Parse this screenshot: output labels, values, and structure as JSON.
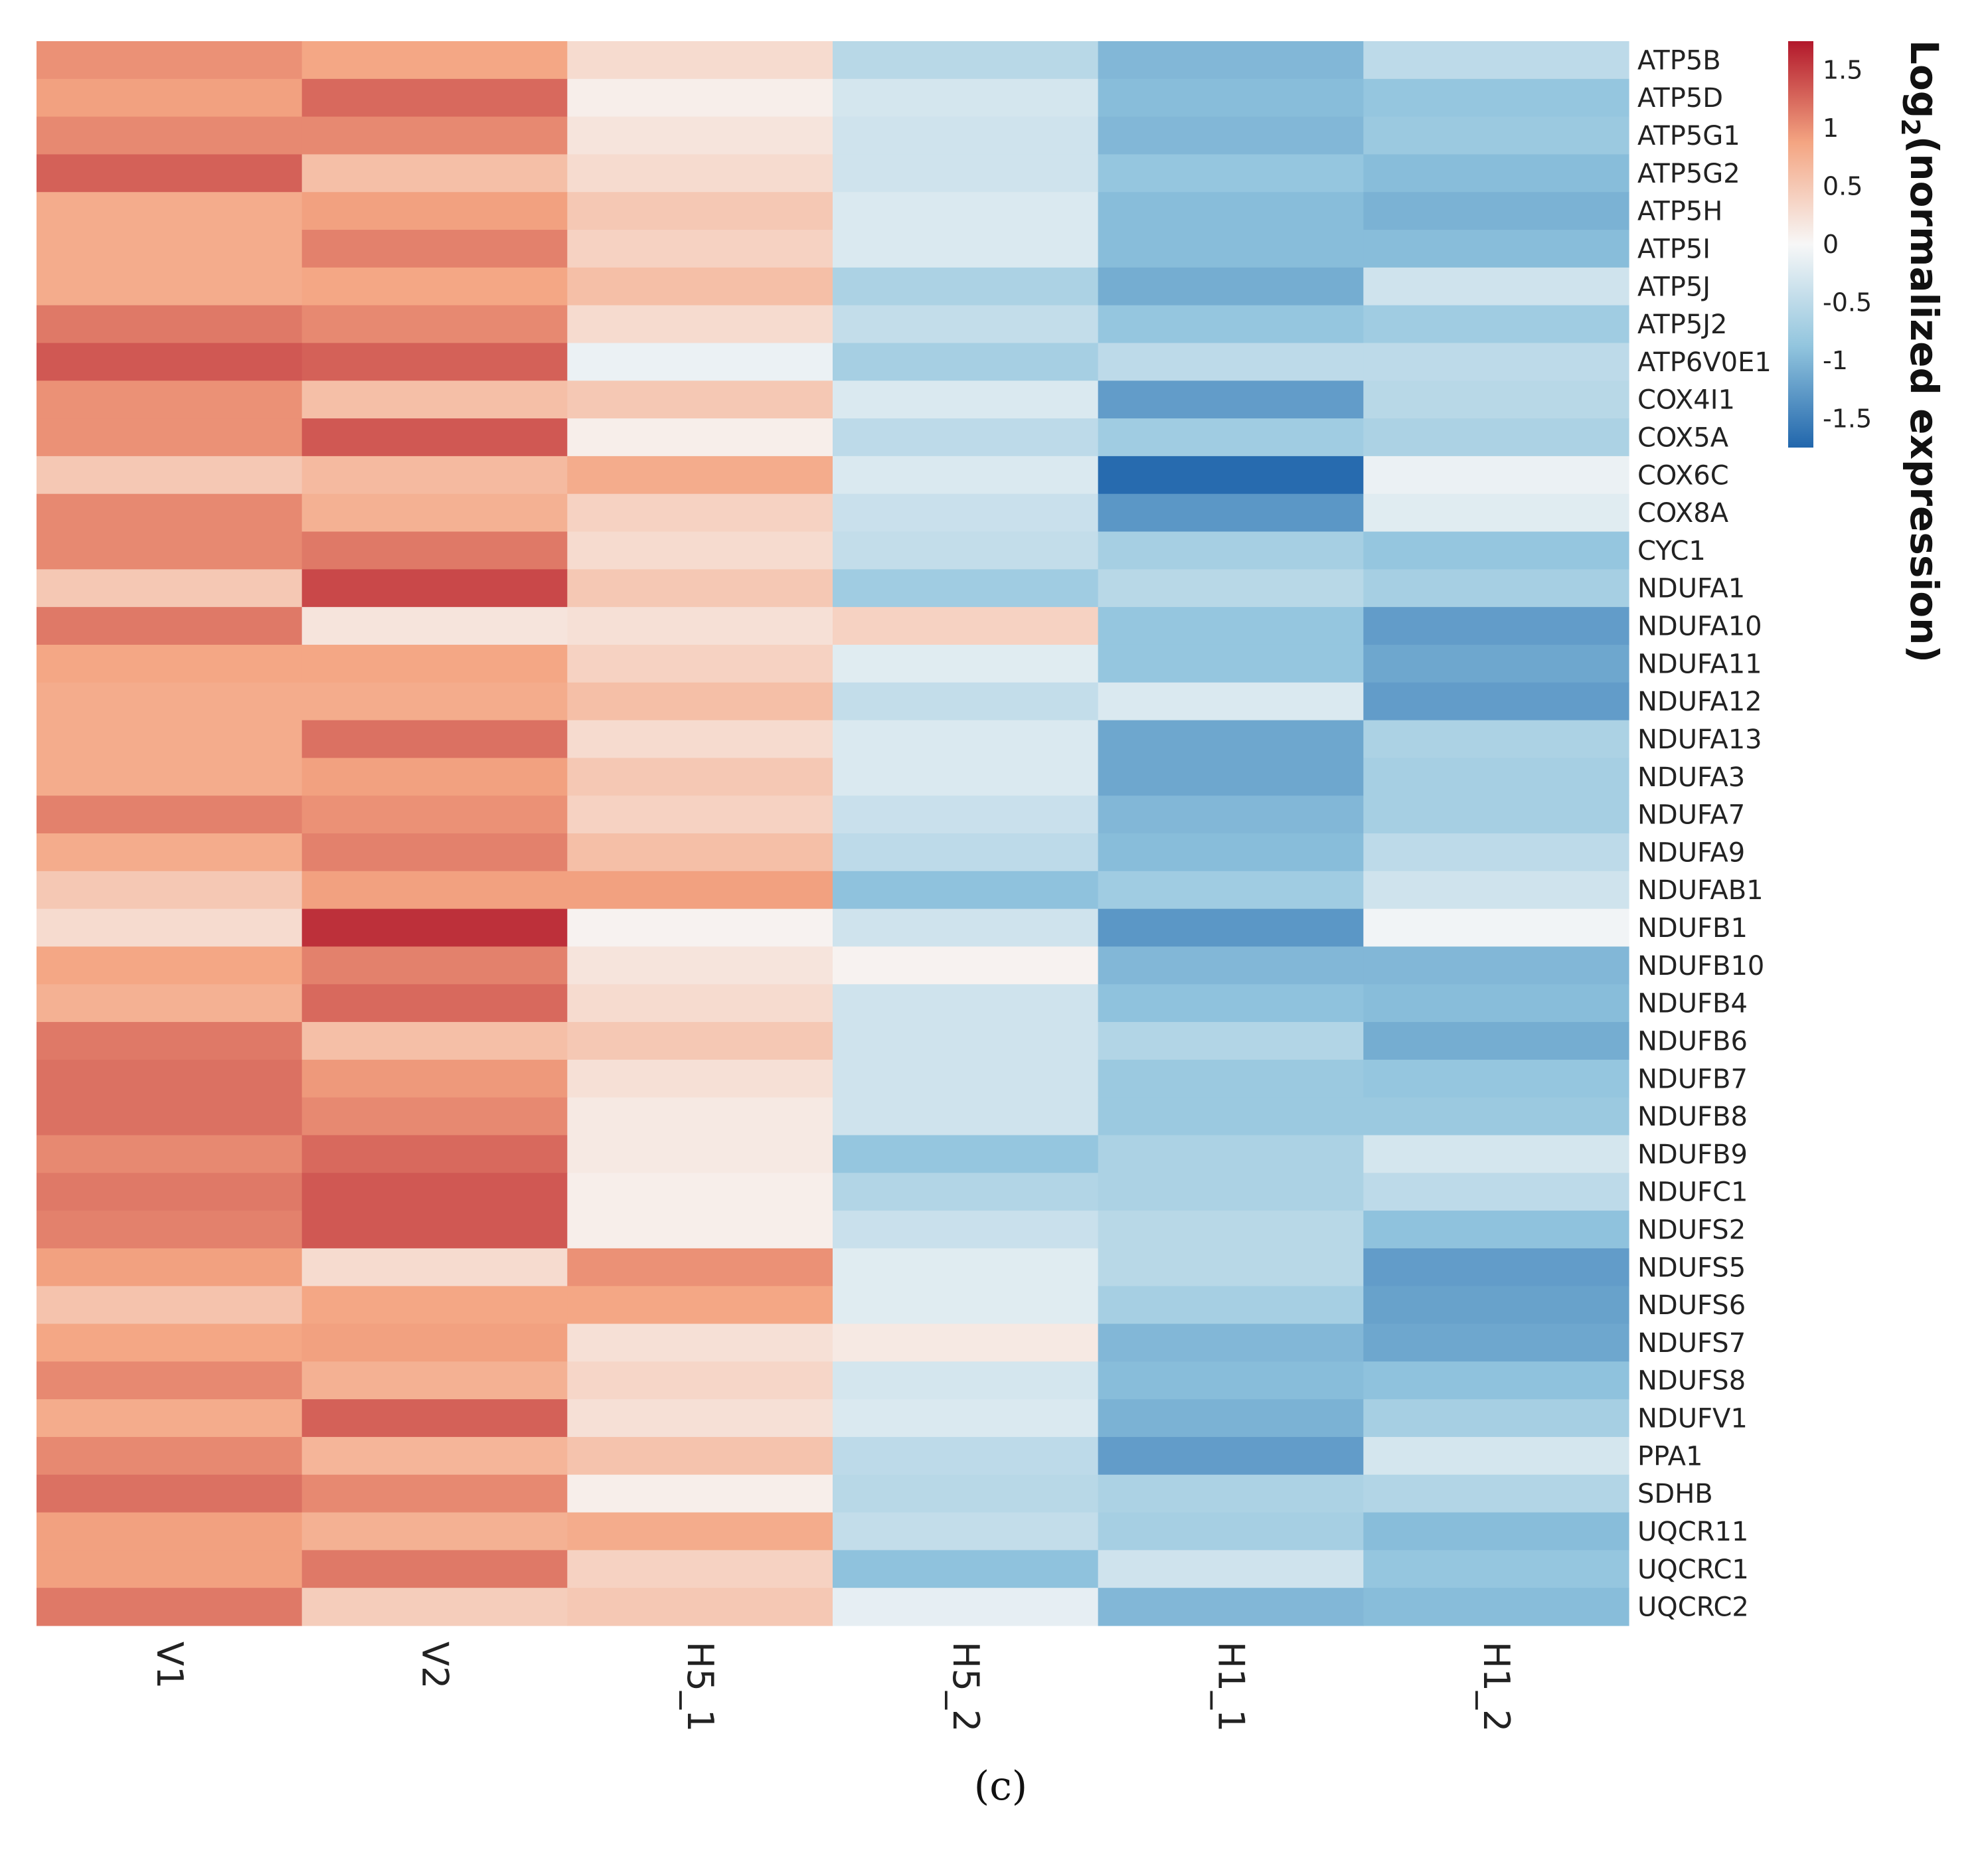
{
  "panel_label": "(c)",
  "chart_data": {
    "type": "heatmap",
    "columns": [
      "V1",
      "V2",
      "H5_1",
      "H5_2",
      "H1_1",
      "H1_2"
    ],
    "rows": [
      "ATP5B",
      "ATP5D",
      "ATP5G1",
      "ATP5G2",
      "ATP5H",
      "ATP5I",
      "ATP5J",
      "ATP5J2",
      "ATP6V0E1",
      "COX4I1",
      "COX5A",
      "COX6C",
      "COX8A",
      "CYC1",
      "NDUFA1",
      "NDUFA10",
      "NDUFA11",
      "NDUFA12",
      "NDUFA13",
      "NDUFA3",
      "NDUFA7",
      "NDUFA9",
      "NDUFAB1",
      "NDUFB1",
      "NDUFB10",
      "NDUFB4",
      "NDUFB6",
      "NDUFB7",
      "NDUFB8",
      "NDUFB9",
      "NDUFC1",
      "NDUFS2",
      "NDUFS5",
      "NDUFS6",
      "NDUFS7",
      "NDUFS8",
      "NDUFV1",
      "PPA1",
      "SDHB",
      "UQCR11",
      "UQCRC1",
      "UQCRC2"
    ],
    "values": [
      [
        1.0,
        0.85,
        0.3,
        -0.55,
        -1.0,
        -0.5
      ],
      [
        0.9,
        1.25,
        0.1,
        -0.3,
        -0.95,
        -0.85
      ],
      [
        1.05,
        1.05,
        0.2,
        -0.35,
        -1.0,
        -0.8
      ],
      [
        1.3,
        0.6,
        0.3,
        -0.35,
        -0.85,
        -0.95
      ],
      [
        0.8,
        0.9,
        0.5,
        -0.25,
        -0.95,
        -1.05
      ],
      [
        0.8,
        1.1,
        0.4,
        -0.25,
        -0.95,
        -0.95
      ],
      [
        0.8,
        0.85,
        0.6,
        -0.65,
        -1.1,
        -0.35
      ],
      [
        1.15,
        1.05,
        0.3,
        -0.45,
        -0.85,
        -0.75
      ],
      [
        1.35,
        1.3,
        -0.1,
        -0.7,
        -0.5,
        -0.5
      ],
      [
        1.0,
        0.6,
        0.5,
        -0.25,
        -1.25,
        -0.55
      ],
      [
        1.0,
        1.35,
        0.1,
        -0.5,
        -0.75,
        -0.65
      ],
      [
        0.5,
        0.65,
        0.8,
        -0.25,
        -1.7,
        -0.1
      ],
      [
        1.05,
        0.75,
        0.4,
        -0.4,
        -1.3,
        -0.2
      ],
      [
        1.05,
        1.15,
        0.3,
        -0.45,
        -0.7,
        -0.85
      ],
      [
        0.5,
        1.45,
        0.5,
        -0.75,
        -0.55,
        -0.7
      ],
      [
        1.15,
        0.2,
        0.25,
        0.4,
        -0.85,
        -1.25
      ],
      [
        0.85,
        0.85,
        0.4,
        -0.2,
        -0.85,
        -1.15
      ],
      [
        0.8,
        0.8,
        0.6,
        -0.45,
        -0.25,
        -1.25
      ],
      [
        0.8,
        1.2,
        0.3,
        -0.25,
        -1.15,
        -0.65
      ],
      [
        0.8,
        0.9,
        0.5,
        -0.25,
        -1.15,
        -0.7
      ],
      [
        1.1,
        1.0,
        0.4,
        -0.4,
        -1.0,
        -0.7
      ],
      [
        0.8,
        1.1,
        0.6,
        -0.5,
        -0.95,
        -0.5
      ],
      [
        0.5,
        0.9,
        0.9,
        -0.9,
        -0.75,
        -0.35
      ],
      [
        0.3,
        1.6,
        0.05,
        -0.35,
        -1.3,
        -0.05
      ],
      [
        0.85,
        1.1,
        0.2,
        0.05,
        -1.0,
        -1.0
      ],
      [
        0.75,
        1.25,
        0.3,
        -0.35,
        -0.9,
        -0.95
      ],
      [
        1.15,
        0.6,
        0.5,
        -0.35,
        -0.6,
        -1.1
      ],
      [
        1.2,
        0.95,
        0.25,
        -0.35,
        -0.8,
        -0.85
      ],
      [
        1.2,
        1.05,
        0.15,
        -0.35,
        -0.8,
        -0.8
      ],
      [
        1.05,
        1.25,
        0.15,
        -0.85,
        -0.65,
        -0.3
      ],
      [
        1.15,
        1.35,
        0.1,
        -0.6,
        -0.65,
        -0.5
      ],
      [
        1.1,
        1.35,
        0.1,
        -0.4,
        -0.55,
        -0.9
      ],
      [
        0.9,
        0.3,
        1.0,
        -0.2,
        -0.55,
        -1.25
      ],
      [
        0.55,
        0.85,
        0.85,
        -0.2,
        -0.7,
        -1.2
      ],
      [
        0.85,
        0.9,
        0.25,
        0.15,
        -1.0,
        -1.15
      ],
      [
        1.05,
        0.75,
        0.35,
        -0.3,
        -0.95,
        -0.9
      ],
      [
        0.8,
        1.3,
        0.25,
        -0.25,
        -1.05,
        -0.7
      ],
      [
        1.05,
        0.7,
        0.55,
        -0.5,
        -1.25,
        -0.3
      ],
      [
        1.2,
        1.05,
        0.1,
        -0.55,
        -0.65,
        -0.6
      ],
      [
        0.9,
        0.75,
        0.8,
        -0.45,
        -0.7,
        -0.95
      ],
      [
        0.9,
        1.15,
        0.4,
        -0.9,
        -0.35,
        -0.85
      ],
      [
        1.15,
        0.45,
        0.5,
        -0.15,
        -1.0,
        -0.95
      ]
    ],
    "colorbar": {
      "title_prefix": "Log",
      "title_sub": "2",
      "title_suffix": "(normalized expression)",
      "ticks": [
        "1.5",
        "1",
        "0.5",
        "0",
        "-0.5",
        "-1",
        "-1.5"
      ],
      "tick_values": [
        1.5,
        1,
        0.5,
        0,
        -0.5,
        -1,
        -1.5
      ],
      "range": [
        -1.75,
        1.75
      ],
      "colors": [
        "#2166ac",
        "#f7f7f7",
        "#b2182b"
      ]
    }
  }
}
